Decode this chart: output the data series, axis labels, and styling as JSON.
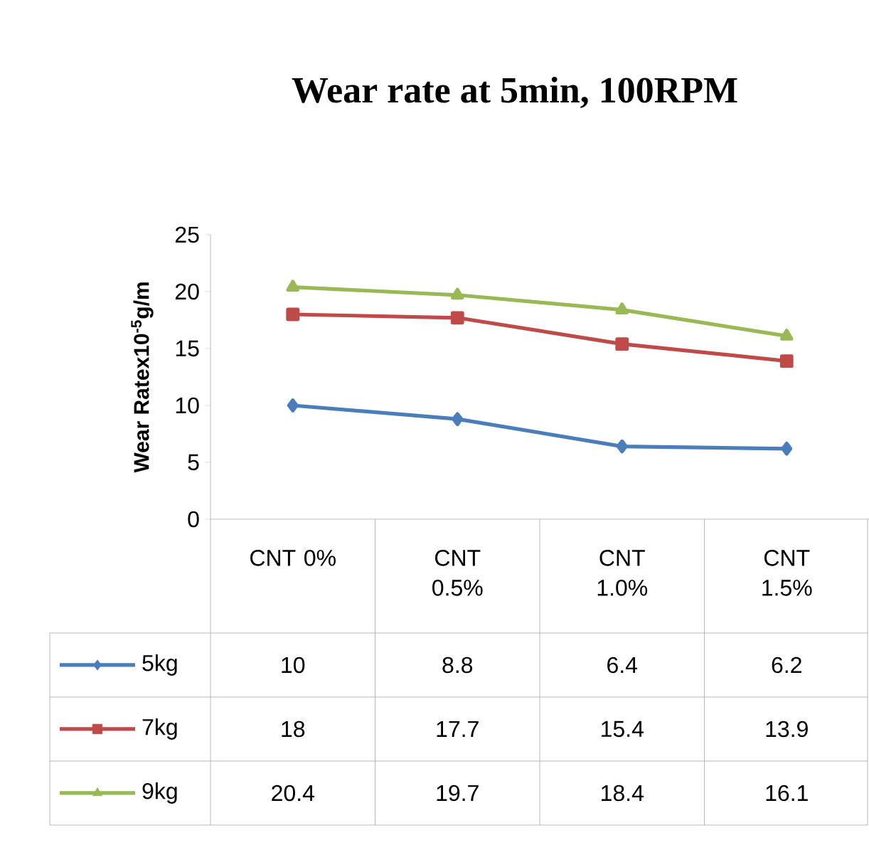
{
  "chart_data": {
    "type": "line",
    "title": "Wear rate at 5min, 100RPM",
    "ylabel": "Wear Ratex10$^{-5}$g/m",
    "categories": [
      "CNT 0%",
      "CNT 0.5%",
      "CNT 1.0%",
      "CNT 1.5%"
    ],
    "series": [
      {
        "name": "5kg",
        "color": "#4a7ebb",
        "marker": "diamond",
        "values": [
          10,
          8.8,
          6.4,
          6.2
        ]
      },
      {
        "name": "7kg",
        "color": "#be4b48",
        "marker": "square",
        "values": [
          18,
          17.7,
          15.4,
          13.9
        ]
      },
      {
        "name": "9kg",
        "color": "#98b954",
        "marker": "triangle",
        "values": [
          20.4,
          19.7,
          18.4,
          16.1
        ]
      }
    ],
    "ylim": [
      0,
      25
    ],
    "yticks": [
      0,
      5,
      10,
      15,
      20,
      25
    ],
    "grid": false,
    "legend": "bottom left",
    "data_labels": true
  }
}
